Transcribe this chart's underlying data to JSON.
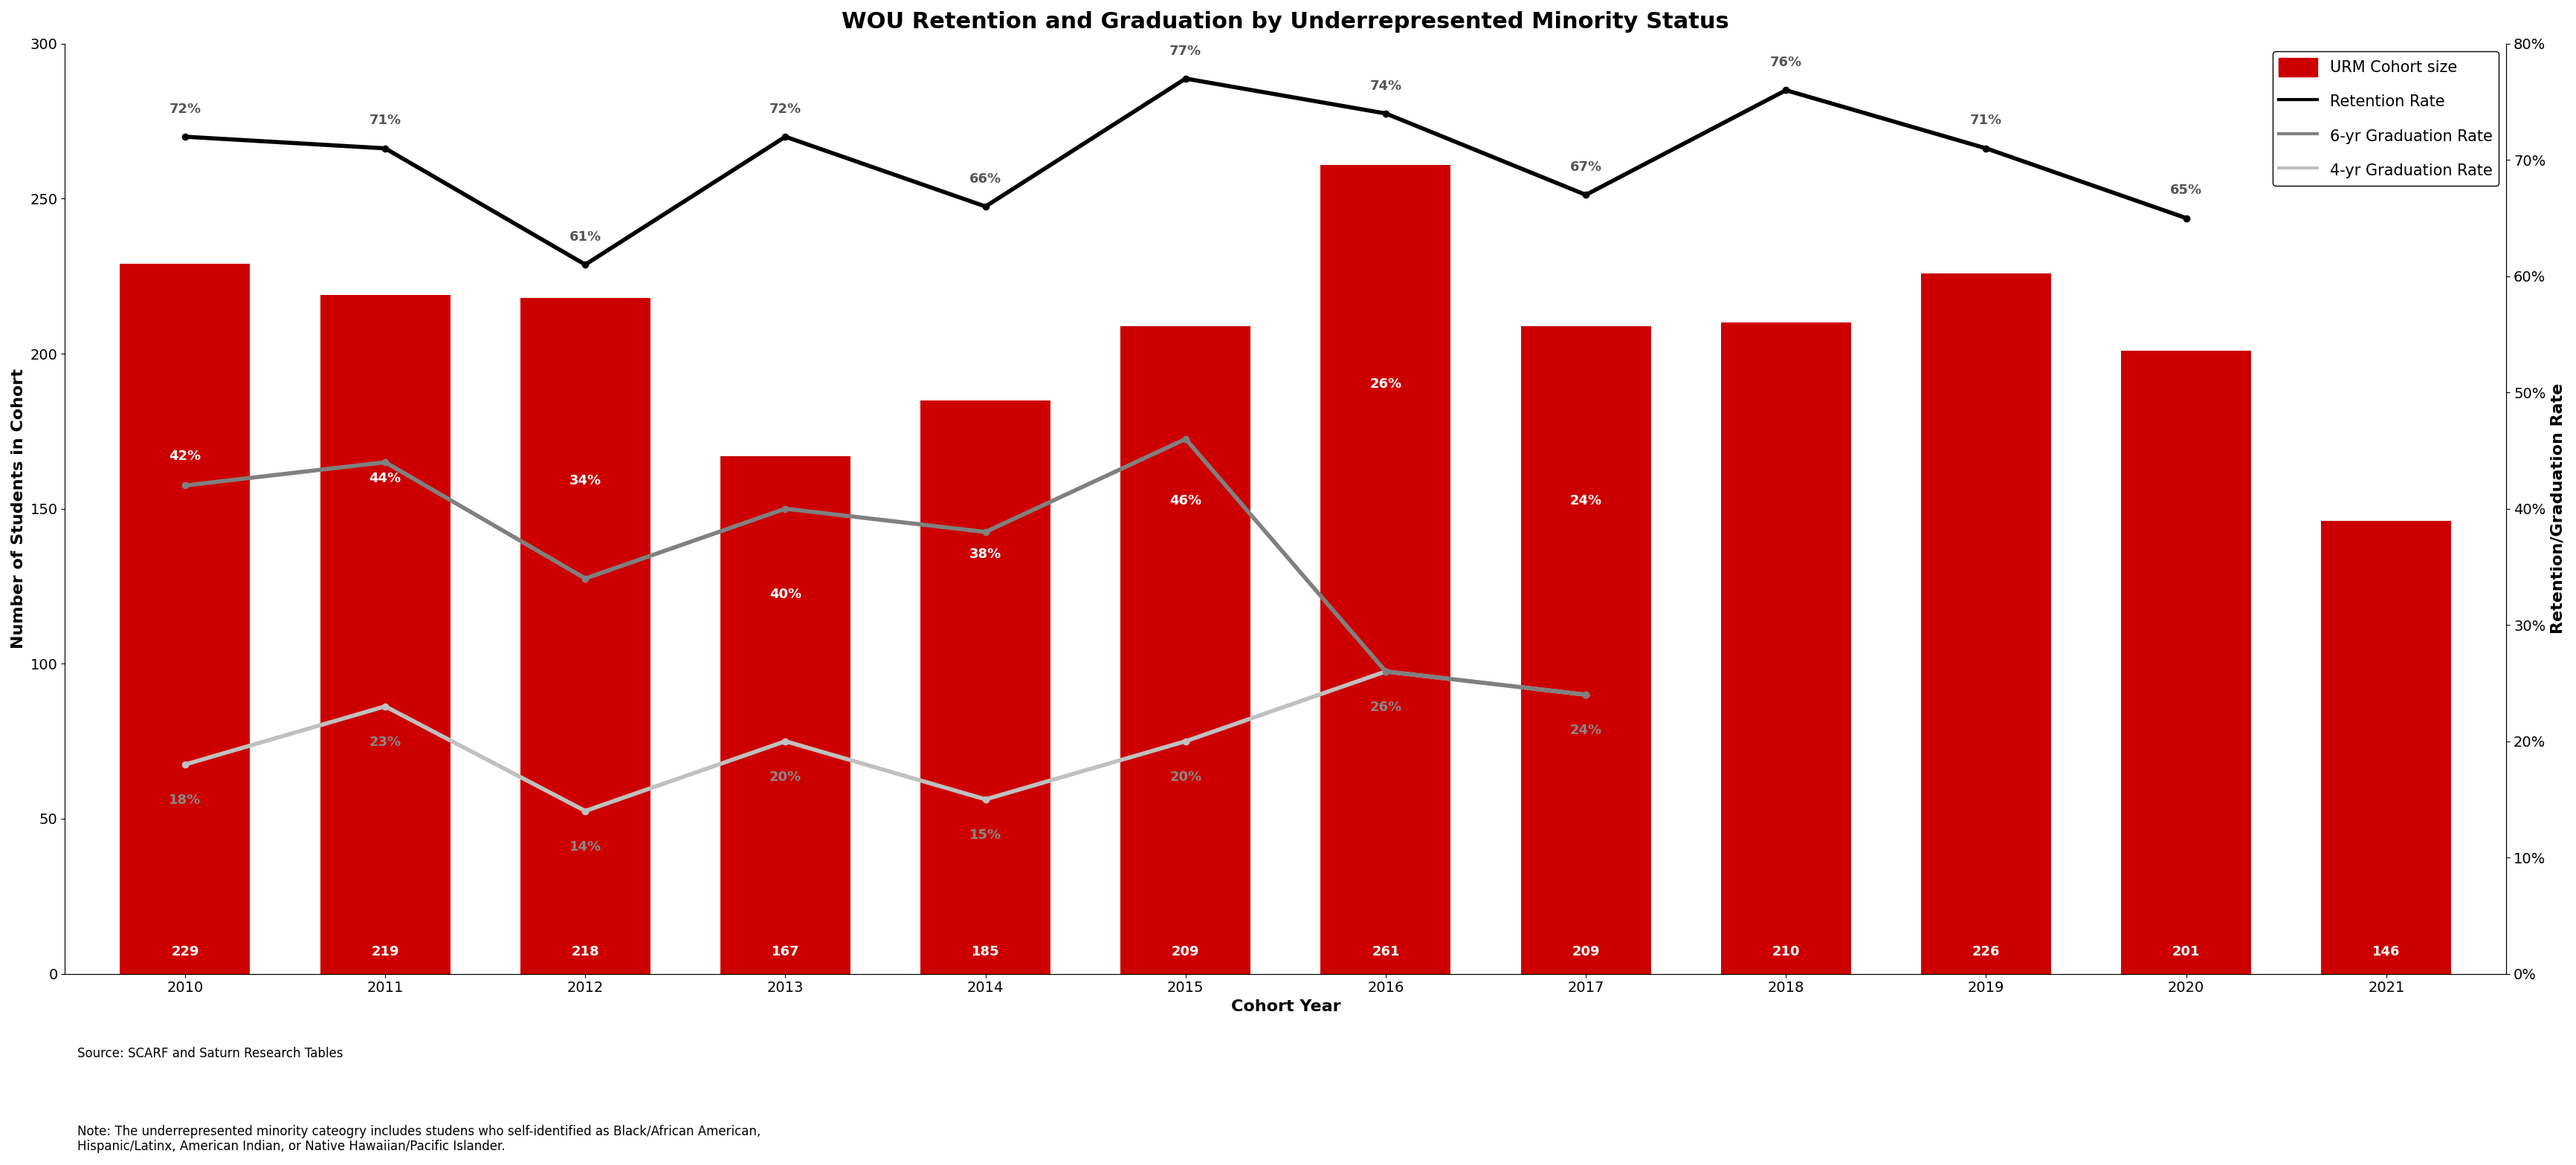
{
  "title": "WOU Retention and Graduation by Underrepresented Minority Status",
  "years": [
    2010,
    2011,
    2012,
    2013,
    2014,
    2015,
    2016,
    2017,
    2018,
    2019,
    2020,
    2021
  ],
  "cohort_sizes": [
    229,
    219,
    218,
    167,
    185,
    209,
    261,
    209,
    210,
    226,
    201,
    146
  ],
  "retention_rates": [
    0.72,
    0.71,
    0.61,
    0.72,
    0.66,
    0.77,
    0.74,
    0.67,
    0.76,
    0.71,
    0.65,
    null
  ],
  "grad_6yr_rates": [
    0.42,
    0.44,
    0.34,
    0.4,
    0.38,
    0.46,
    0.26,
    0.24,
    null,
    null,
    null,
    null
  ],
  "grad_4yr_rates": [
    0.18,
    0.23,
    0.14,
    0.2,
    0.15,
    0.2,
    0.26,
    0.24,
    null,
    null,
    null,
    null
  ],
  "retention_labels": [
    "72%",
    "71%",
    "61%",
    "72%",
    "66%",
    "77%",
    "74%",
    "67%",
    "76%",
    "71%",
    "65%",
    null
  ],
  "grad_6yr_labels": [
    "42%",
    "44%",
    "34%",
    "40%",
    "38%",
    "46%",
    "26%",
    "24%",
    null,
    null,
    null,
    null
  ],
  "grad_4yr_labels": [
    "18%",
    "23%",
    "14%",
    "20%",
    "15%",
    "20%",
    "26%",
    "24%",
    null,
    null,
    null,
    null
  ],
  "bar_color": "#CC0000",
  "retention_line_color": "#000000",
  "grad_6yr_color": "#808080",
  "grad_4yr_color": "#C0C0C0",
  "ylabel_left": "Number of Students in Cohort",
  "ylabel_right": "Retention/Graduation Rate",
  "xlabel": "Cohort Year",
  "ylim_left": [
    0,
    300
  ],
  "ylim_right": [
    0,
    0.8
  ],
  "yticks_left": [
    0,
    50,
    100,
    150,
    200,
    250,
    300
  ],
  "yticks_right": [
    0,
    0.1,
    0.2,
    0.3,
    0.4,
    0.5,
    0.6,
    0.7,
    0.8
  ],
  "source_text": "Source: SCARF and Saturn Research Tables",
  "note_text": "Note: The underrepresented minority cateogry includes studens who self-identified as Black/African American,\nHispanic/Latinx, American Indian, or Native Hawaiian/Pacific Islander.",
  "background_color": "#ffffff",
  "title_fontsize": 22,
  "axis_label_fontsize": 16,
  "tick_fontsize": 14,
  "bar_label_fontsize": 13,
  "line_label_fontsize": 13,
  "cohort_label_fontsize": 13,
  "legend_fontsize": 15,
  "annotation_fontsize": 12
}
